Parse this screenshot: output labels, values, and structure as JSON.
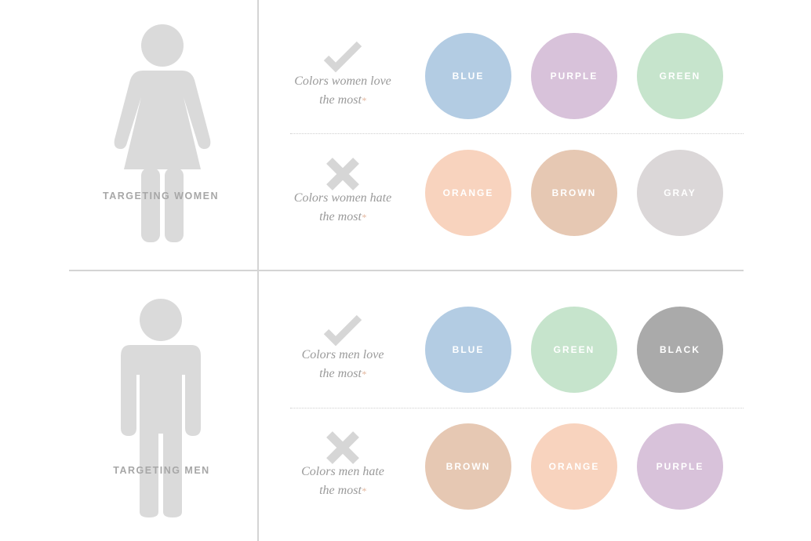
{
  "sections": [
    {
      "label": "TARGETING WOMEN",
      "figure": "woman-icon",
      "rows": [
        {
          "icon": "check-icon",
          "caption_line1": "Colors women love",
          "caption_line2": "the most",
          "asterisk": "*",
          "colors": [
            {
              "name": "BLUE",
              "hex": "#b3cce3"
            },
            {
              "name": "PURPLE",
              "hex": "#d8c2da"
            },
            {
              "name": "GREEN",
              "hex": "#c6e4cc"
            }
          ]
        },
        {
          "icon": "cross-icon",
          "caption_line1": "Colors women hate",
          "caption_line2": "the most",
          "asterisk": "*",
          "colors": [
            {
              "name": "ORANGE",
              "hex": "#f8d3be"
            },
            {
              "name": "BROWN",
              "hex": "#e6c8b3"
            },
            {
              "name": "GRAY",
              "hex": "#dbd7d8"
            }
          ]
        }
      ]
    },
    {
      "label": "TARGETING MEN",
      "figure": "man-icon",
      "rows": [
        {
          "icon": "check-icon",
          "caption_line1": "Colors men love",
          "caption_line2": "the most",
          "asterisk": "*",
          "colors": [
            {
              "name": "BLUE",
              "hex": "#b3cce3"
            },
            {
              "name": "GREEN",
              "hex": "#c6e4cc"
            },
            {
              "name": "BLACK",
              "hex": "#aaaaaa"
            }
          ]
        },
        {
          "icon": "cross-icon",
          "caption_line1": "Colors men hate",
          "caption_line2": "the most",
          "asterisk": "*",
          "colors": [
            {
              "name": "BROWN",
              "hex": "#e6c8b3"
            },
            {
              "name": "ORANGE",
              "hex": "#f8d3be"
            },
            {
              "name": "PURPLE",
              "hex": "#d8c2da"
            }
          ]
        }
      ]
    }
  ],
  "figure_color": "#dadada",
  "accent_asterisk": "#e2b49a"
}
